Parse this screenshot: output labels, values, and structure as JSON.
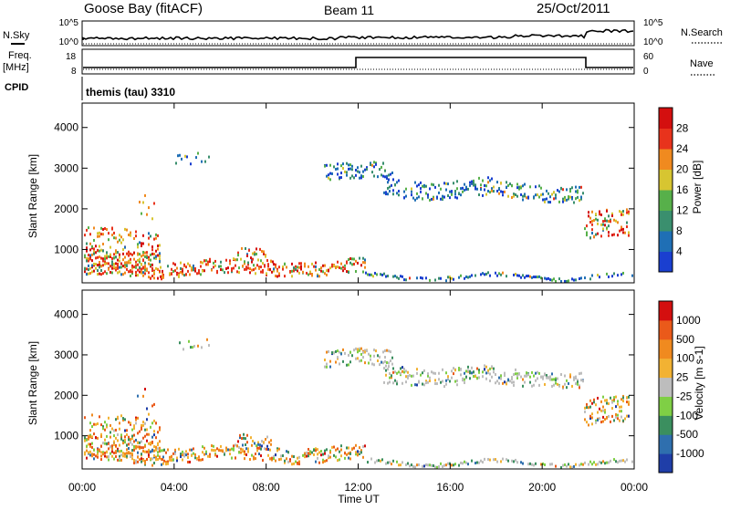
{
  "header": {
    "title_left": "Goose Bay (fitACF)",
    "title_center": "Beam 11",
    "title_right": "25/Oct/2011"
  },
  "panels": {
    "nsky": {
      "left_label": "N.Sky",
      "right_label": "N.Search",
      "left_ticks": [
        "10^5",
        "10^0"
      ],
      "right_ticks": [
        "10^5",
        "10^0"
      ]
    },
    "freq": {
      "label_line1": "Freq.",
      "label_line2": "[MHz]",
      "right_label": "Nave",
      "left_ticks": [
        "18",
        "8"
      ],
      "right_ticks": [
        "60",
        "0"
      ]
    },
    "cpid": {
      "label": "CPID",
      "text": "themis (tau) 3310"
    }
  },
  "chart_data": [
    {
      "type": "heatmap",
      "name": "power-panel",
      "ylabel": "Slant Range [km]",
      "ylim": [
        180,
        4600
      ],
      "yticks": [
        1000,
        2000,
        3000,
        4000
      ],
      "xlim": [
        0,
        24
      ],
      "xticks": [
        "00:00",
        "04:00",
        "08:00",
        "12:00",
        "16:00",
        "20:00",
        "00:00"
      ],
      "colorbar": {
        "label": "Power [dB]",
        "ticks": [
          "4",
          "8",
          "12",
          "16",
          "20",
          "24",
          "28"
        ],
        "colors": [
          "#1a3fd0",
          "#1f6fb5",
          "#3a8f6e",
          "#57b04a",
          "#d7c531",
          "#f08a1f",
          "#e8331c",
          "#d40f0f"
        ]
      }
    },
    {
      "type": "heatmap",
      "name": "velocity-panel",
      "ylabel": "Slant Range [km]",
      "ylim": [
        180,
        4600
      ],
      "yticks": [
        1000,
        2000,
        3000,
        4000
      ],
      "xlim": [
        0,
        24
      ],
      "xticks": [
        "00:00",
        "04:00",
        "08:00",
        "12:00",
        "16:00",
        "20:00",
        "00:00"
      ],
      "xlabel": "Time UT",
      "colorbar": {
        "label": "Velocity [m s-1]",
        "ticks": [
          "1000",
          "500",
          "100",
          "25",
          "-25",
          "-100",
          "-500",
          "-1000"
        ],
        "colors": [
          "#1f3ea8",
          "#2f6fae",
          "#3b8f5f",
          "#7fcf45",
          "#bdbdbd",
          "#f2b233",
          "#f08a1f",
          "#ea5a1a",
          "#d40f0f"
        ]
      }
    }
  ]
}
